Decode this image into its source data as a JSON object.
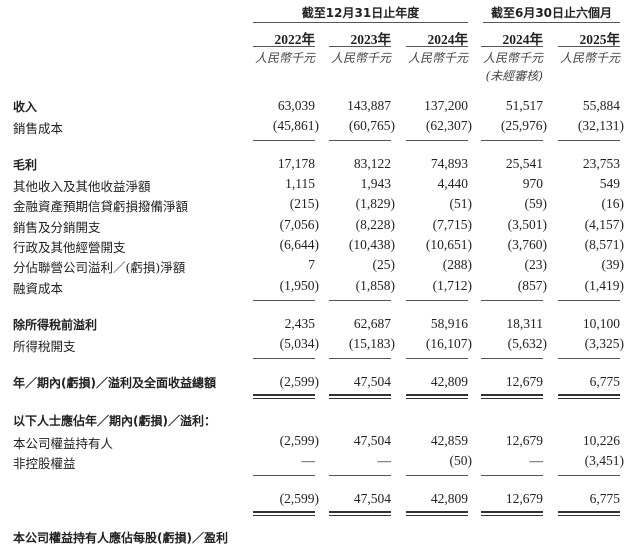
{
  "header": {
    "group1": "截至12月31日止年度",
    "group2": "截至6月30日止六個月",
    "years": [
      "2022年",
      "2023年",
      "2024年",
      "2024年",
      "2025年"
    ],
    "unit": "人民幣千元",
    "unaudited": "(未經審核)"
  },
  "rows": [
    {
      "label": "收入",
      "bold": true,
      "values": [
        "63,039",
        "143,887",
        "137,200",
        "51,517",
        "55,884"
      ]
    },
    {
      "label": "銷售成本",
      "values": [
        "(45,861)",
        "(60,765)",
        "(62,307)",
        "(25,976)",
        "(32,131)"
      ],
      "rule": "single"
    },
    {
      "label": "毛利",
      "bold": true,
      "values": [
        "17,178",
        "83,122",
        "74,893",
        "25,541",
        "23,753"
      ]
    },
    {
      "label": "其他收入及其他收益淨額",
      "values": [
        "1,115",
        "1,943",
        "4,440",
        "970",
        "549"
      ]
    },
    {
      "label": "金融資產預期信貸虧損撥備淨額",
      "values": [
        "(215)",
        "(1,829)",
        "(51)",
        "(59)",
        "(16)"
      ]
    },
    {
      "label": "銷售及分銷開支",
      "values": [
        "(7,056)",
        "(8,228)",
        "(7,715)",
        "(3,501)",
        "(4,157)"
      ]
    },
    {
      "label": "行政及其他經營開支",
      "values": [
        "(6,644)",
        "(10,438)",
        "(10,651)",
        "(3,760)",
        "(8,571)"
      ]
    },
    {
      "label": "分佔聯營公司溢利／(虧損)淨額",
      "values": [
        "7",
        "(25)",
        "(288)",
        "(23)",
        "(39)"
      ]
    },
    {
      "label": "融資成本",
      "values": [
        "(1,950)",
        "(1,858)",
        "(1,712)",
        "(857)",
        "(1,419)"
      ],
      "rule": "single"
    },
    {
      "label": "除所得稅前溢利",
      "bold": true,
      "values": [
        "2,435",
        "62,687",
        "58,916",
        "18,311",
        "10,100"
      ]
    },
    {
      "label": "所得稅開支",
      "values": [
        "(5,034)",
        "(15,183)",
        "(16,107)",
        "(5,632)",
        "(3,325)"
      ],
      "rule": "single"
    },
    {
      "label": "年／期內(虧損)／溢利及全面收益總額",
      "bold": true,
      "values": [
        "(2,599)",
        "47,504",
        "42,809",
        "12,679",
        "6,775"
      ],
      "rule": "double"
    },
    {
      "label": "以下人士應佔年／期內(虧損)／溢利：",
      "bold": true,
      "values": [
        "",
        "",
        "",
        "",
        ""
      ]
    },
    {
      "label": "本公司權益持有人",
      "values": [
        "(2,599)",
        "47,504",
        "42,859",
        "12,679",
        "10,226"
      ]
    },
    {
      "label": "非控股權益",
      "values": [
        "—",
        "—",
        "(50)",
        "—",
        "(3,451)"
      ],
      "rule": "single"
    },
    {
      "label": "",
      "values": [
        "(2,599)",
        "47,504",
        "42,809",
        "12,679",
        "6,775"
      ],
      "rule": "double"
    },
    {
      "label": "本公司權益持有人應佔每股(虧損)／盈利",
      "bold": true,
      "values": [
        "",
        "",
        "",
        "",
        ""
      ]
    }
  ]
}
